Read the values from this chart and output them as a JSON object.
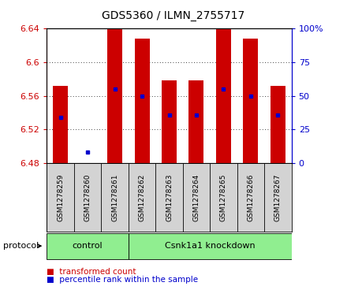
{
  "title": "GDS5360 / ILMN_2755717",
  "samples": [
    "GSM1278259",
    "GSM1278260",
    "GSM1278261",
    "GSM1278262",
    "GSM1278263",
    "GSM1278264",
    "GSM1278265",
    "GSM1278266",
    "GSM1278267"
  ],
  "bar_bottom": 6.48,
  "bar_top": [
    6.572,
    6.48,
    6.64,
    6.628,
    6.578,
    6.578,
    6.64,
    6.628,
    6.572
  ],
  "percentile_y": [
    6.534,
    6.493,
    6.568,
    6.56,
    6.537,
    6.537,
    6.568,
    6.56,
    6.537
  ],
  "ylim": [
    6.48,
    6.64
  ],
  "yticks": [
    6.48,
    6.52,
    6.56,
    6.6,
    6.64
  ],
  "ytick_labels_left": [
    "6.48",
    "6.52",
    "6.56",
    "6.6",
    "6.64"
  ],
  "ytick_labels_right": [
    "0",
    "25",
    "50",
    "75",
    "100%"
  ],
  "bar_color": "#cc0000",
  "pct_color": "#0000cc",
  "groups": [
    {
      "label": "control",
      "start": 0,
      "end": 3,
      "color": "#90ee90"
    },
    {
      "label": "Csnk1a1 knockdown",
      "start": 3,
      "end": 9,
      "color": "#90ee90"
    }
  ],
  "protocol_label": "protocol",
  "legend_items": [
    {
      "color": "#cc0000",
      "label": "transformed count"
    },
    {
      "color": "#0000cc",
      "label": "percentile rank within the sample"
    }
  ],
  "bar_width": 0.55,
  "grid_color": "black",
  "axis_color_left": "#cc0000",
  "axis_color_right": "#0000cc",
  "sample_box_color": "#d3d3d3",
  "figure_bg": "#ffffff"
}
